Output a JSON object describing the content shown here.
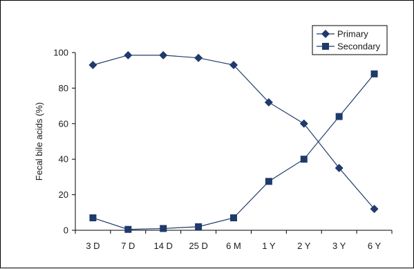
{
  "chart_data": {
    "type": "line",
    "categories": [
      "3 D",
      "7 D",
      "14 D",
      "25 D",
      "6 M",
      "1 Y",
      "2 Y",
      "3 Y",
      "6 Y"
    ],
    "series": [
      {
        "name": "Primary",
        "marker": "diamond",
        "color": "#1f3a6b",
        "values": [
          93,
          98.5,
          98.5,
          97,
          93,
          72,
          60,
          35,
          12
        ]
      },
      {
        "name": "Secondary",
        "marker": "square",
        "color": "#1f3a6b",
        "values": [
          7,
          0.5,
          1,
          2,
          7,
          27.5,
          40,
          64,
          88
        ]
      }
    ],
    "title": "",
    "xlabel": "",
    "ylabel": "Fecal bile acids (%)",
    "ylim": [
      0,
      100
    ],
    "yticks": [
      0,
      20,
      40,
      60,
      80,
      100
    ],
    "grid": false,
    "legend_position": "top-right"
  }
}
